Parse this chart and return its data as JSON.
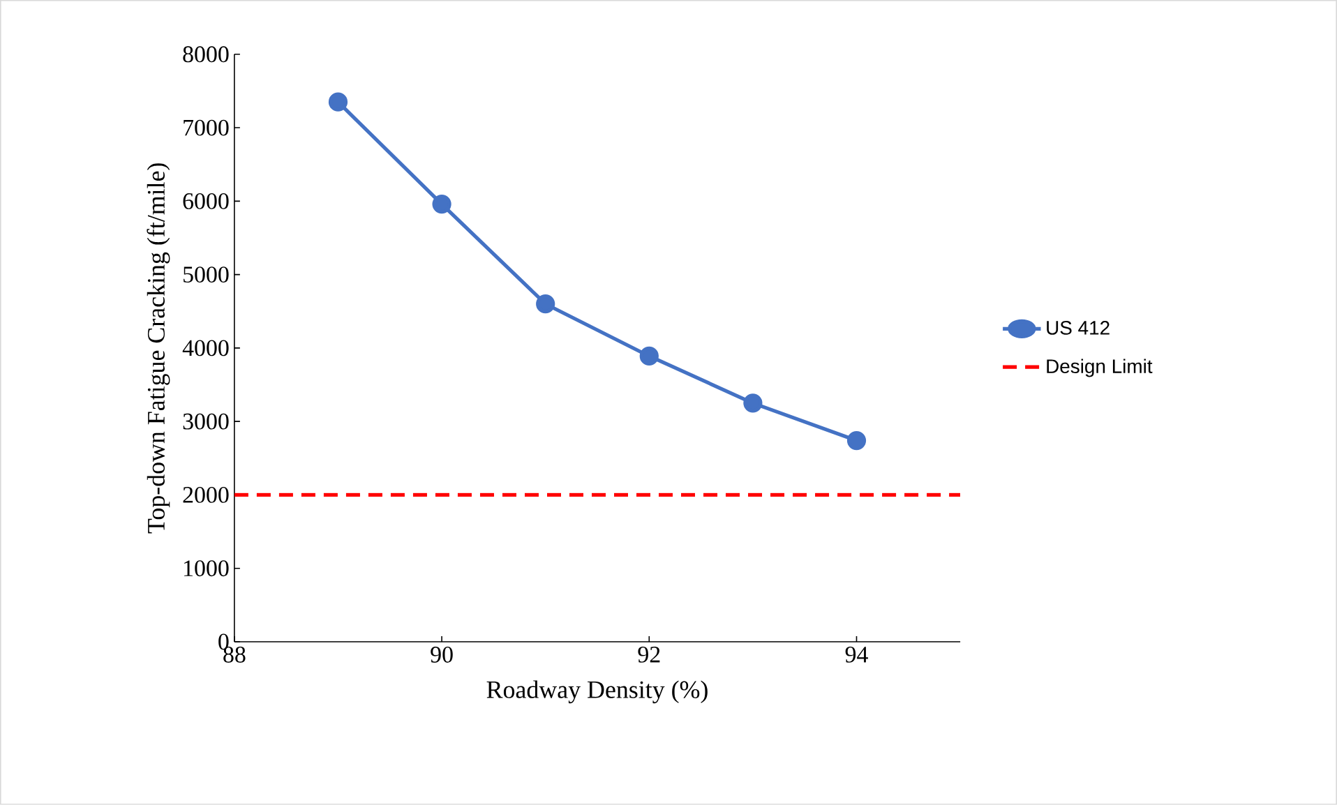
{
  "chart_data": {
    "type": "line",
    "xlabel": "Roadway Density (%)",
    "ylabel": "Top-down Fatigue Cracking (ft/mile)",
    "x": [
      89,
      90,
      91,
      92,
      93,
      94
    ],
    "series": [
      {
        "name": "US 412",
        "color": "#4472c4",
        "values": [
          7350,
          5960,
          4600,
          3890,
          3250,
          2740
        ],
        "marker": "circle",
        "line_style": "solid"
      },
      {
        "name": "Design Limit",
        "color": "#ff0000",
        "x": [
          88,
          95
        ],
        "values": [
          2000,
          2000
        ],
        "marker": "none",
        "line_style": "dashed"
      }
    ],
    "xlim": [
      88,
      95
    ],
    "ylim": [
      0,
      8000
    ],
    "xticks": [
      88,
      90,
      92,
      94
    ],
    "yticks": [
      0,
      1000,
      2000,
      3000,
      4000,
      5000,
      6000,
      7000,
      8000
    ],
    "grid": false,
    "legend": "right"
  }
}
